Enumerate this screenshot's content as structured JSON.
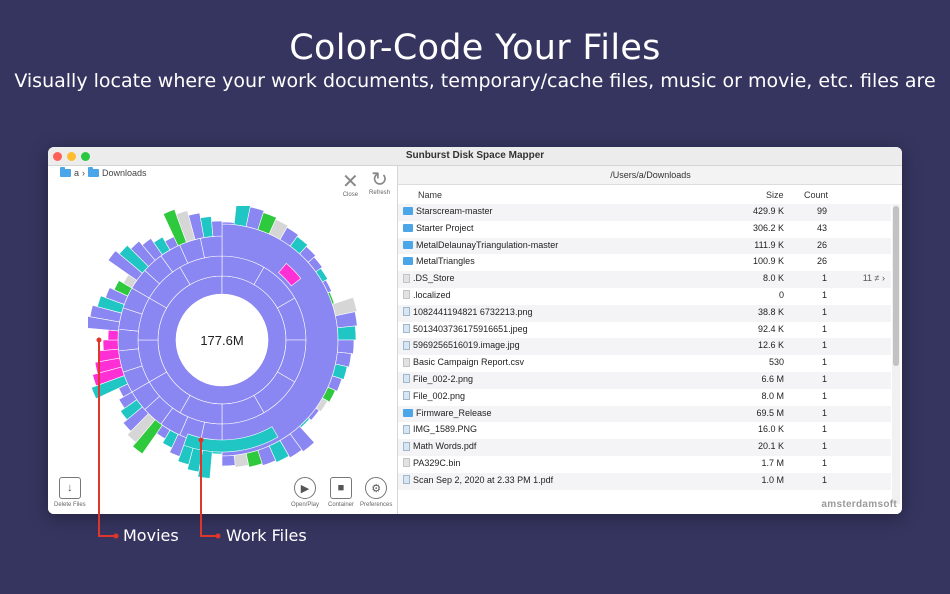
{
  "headline": {
    "title": "Color-Code Your Files",
    "subtitle": "Visually locate where your work documents, temporary/cache files, music or movie, etc. files are"
  },
  "window": {
    "title": "Sunburst Disk Space Mapper",
    "breadcrumb": [
      "a",
      "Downloads"
    ],
    "toolbar": {
      "close": "Close",
      "refresh": "Refresh"
    },
    "center_label": "177.6M",
    "bottom_tools": {
      "delete": "Delete Files",
      "open": "Open/Play",
      "container": "Container",
      "preferences": "Preferences"
    },
    "path": "/Users/a/Downloads",
    "columns": {
      "name": "Name",
      "size": "Size",
      "count": "Count"
    },
    "files": [
      {
        "name": "Starscream-master",
        "size": "429.9 K",
        "count": "99",
        "type": "folder"
      },
      {
        "name": "Starter Project",
        "size": "306.2 K",
        "count": "43",
        "type": "folder"
      },
      {
        "name": "MetalDelaunayTriangulation-master",
        "size": "111.9 K",
        "count": "26",
        "type": "folder"
      },
      {
        "name": "MetalTriangles",
        "size": "100.9 K",
        "count": "26",
        "type": "folder"
      },
      {
        "name": ".DS_Store",
        "size": "8.0 K",
        "count": "1",
        "type": "doc",
        "extra": "11 ≠ ›"
      },
      {
        "name": ".localized",
        "size": "0",
        "count": "1",
        "type": "doc"
      },
      {
        "name": "1082441194821 6732213.png",
        "size": "38.8 K",
        "count": "1",
        "type": "image"
      },
      {
        "name": "5013403736175916651.jpeg",
        "size": "92.4 K",
        "count": "1",
        "type": "image"
      },
      {
        "name": "5969256516019.image.jpg",
        "size": "12.6 K",
        "count": "1",
        "type": "image"
      },
      {
        "name": "Basic Campaign Report.csv",
        "size": "530",
        "count": "1",
        "type": "doc"
      },
      {
        "name": "File_002-2.png",
        "size": "6.6 M",
        "count": "1",
        "type": "image"
      },
      {
        "name": "File_002.png",
        "size": "8.0 M",
        "count": "1",
        "type": "image"
      },
      {
        "name": "Firmware_Release",
        "size": "69.5 M",
        "count": "1",
        "type": "folder"
      },
      {
        "name": "IMG_1589.PNG",
        "size": "16.0 K",
        "count": "1",
        "type": "image"
      },
      {
        "name": "Math Words.pdf",
        "size": "20.1 K",
        "count": "1",
        "type": "image"
      },
      {
        "name": "PA329C.bin",
        "size": "1.7 M",
        "count": "1",
        "type": "doc"
      },
      {
        "name": "Scan Sep 2, 2020 at 2.33 PM 1.pdf",
        "size": "1.0 M",
        "count": "1",
        "type": "image"
      }
    ],
    "brand": "amsterdamsoft"
  },
  "callouts": {
    "movies": "Movies",
    "work": "Work Files"
  },
  "colors": {
    "background": "#363560",
    "ring": "#8a86f2",
    "movies": "#ff2fd6",
    "work": "#1fc6c4",
    "misc": "#2ec93c",
    "other": "#d6d6d6",
    "callout": "#e0352b"
  }
}
